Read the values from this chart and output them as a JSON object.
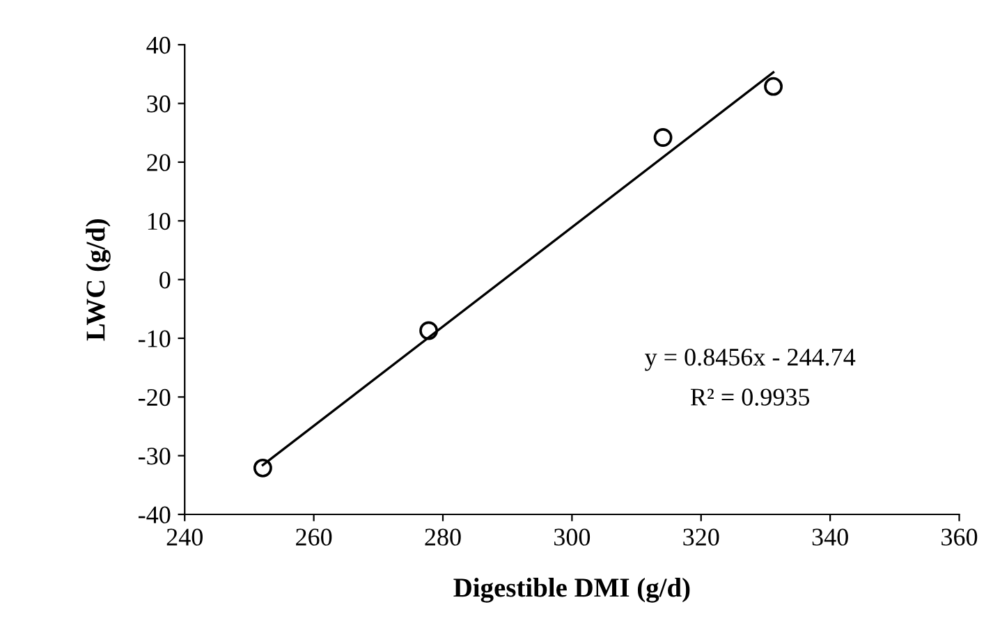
{
  "chart_data": {
    "type": "scatter",
    "xlabel": "Digestible DMI (g/d)",
    "ylabel": "LWC (g/d)",
    "x": [
      252.1,
      277.8,
      314.1,
      331.2
    ],
    "series": [
      {
        "color": "#000000",
        "marker": "circle",
        "values": [
          -32.1,
          -8.7,
          24.2,
          32.9
        ]
      },
      {
        "type": "line",
        "color": "#000000",
        "marker": "none",
        "line_style": "solid",
        "x": [
          252.1,
          331.2
        ],
        "values": [
          -31.6,
          35.3
        ]
      }
    ],
    "annotations": [
      "y = 0.8456x - 244.74",
      "R² = 0.9935"
    ],
    "xlim": [
      240,
      360
    ],
    "xticks": [
      240,
      260,
      280,
      300,
      320,
      340,
      360
    ],
    "ylim": [
      -40,
      40
    ],
    "yticks": [
      -40,
      -30,
      -20,
      -10,
      0,
      10,
      20,
      30,
      40
    ],
    "grid": false,
    "legend": false
  }
}
